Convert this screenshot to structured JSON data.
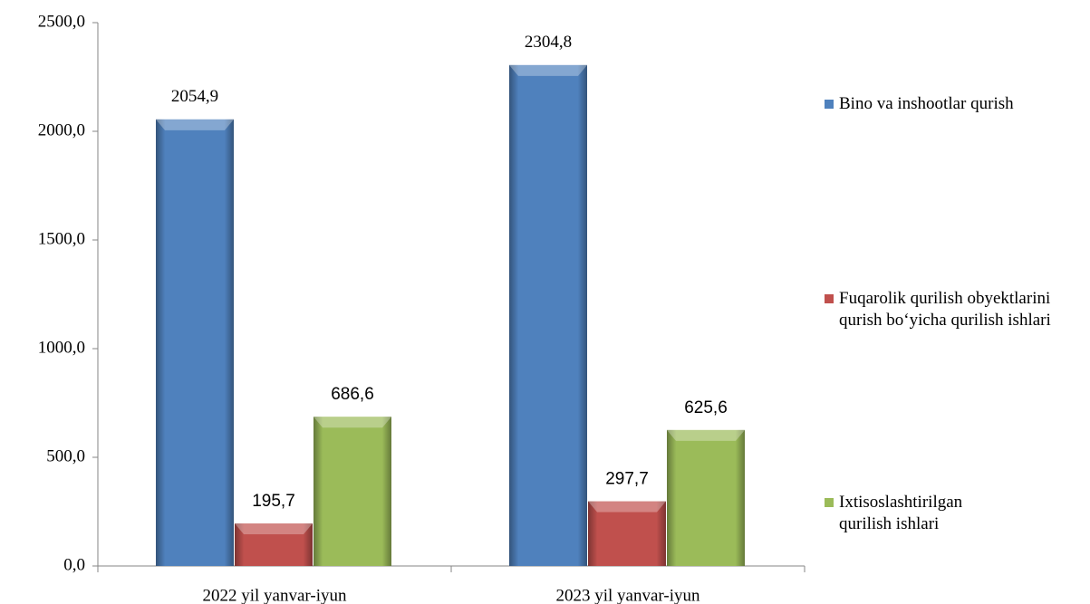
{
  "chart_data": {
    "type": "bar",
    "categories": [
      "2022 yil yanvar-iyun",
      "2023 yil yanvar-iyun"
    ],
    "series": [
      {
        "name": "Bino va inshootlar qurish",
        "color": "#4f81bd",
        "values": [
          2054.9,
          2304.8
        ],
        "value_labels": [
          "2054,9",
          "2304,8"
        ]
      },
      {
        "name": "Fuqarolik qurilish obyektlarini  qurish bo‘yicha qurilish ishlari",
        "color": "#c0504d",
        "values": [
          195.7,
          297.7
        ],
        "value_labels": [
          "195,7",
          "297,7"
        ]
      },
      {
        "name": "Ixtisoslashtirilgan qurilish ishlari",
        "color": "#9bbb59",
        "values": [
          686.6,
          625.6
        ],
        "value_labels": [
          "686,6",
          "625,6"
        ]
      }
    ],
    "ylim": [
      0,
      2500
    ],
    "yticks": [
      {
        "value": 0,
        "label": "0,0"
      },
      {
        "value": 500,
        "label": "500,0"
      },
      {
        "value": 1000,
        "label": "1000,0"
      },
      {
        "value": 1500,
        "label": "1500,0"
      },
      {
        "value": 2000,
        "label": "2000,0"
      },
      {
        "value": 2500,
        "label": "2500,0"
      }
    ],
    "legend": "right"
  }
}
